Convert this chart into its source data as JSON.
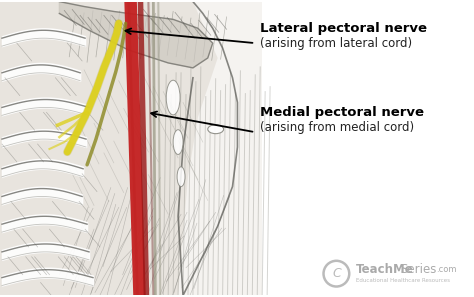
{
  "figsize": [
    4.74,
    2.97
  ],
  "dpi": 100,
  "bg_color": "#ffffff",
  "label1_bold": "Lateral pectoral nerve",
  "label1_normal": "(arising from lateral cord)",
  "label2_bold": "Medial pectoral nerve",
  "label2_normal": "(arising from medial cord)",
  "watermark_color": "#bbbbbb",
  "watermark_text_color": "#aaaaaa",
  "red_vessel_color": "#c42020",
  "yellow_nerve_color": "#ddd020",
  "sketch_dark": "#555550",
  "sketch_mid": "#888880",
  "sketch_light": "#aaaaaa"
}
